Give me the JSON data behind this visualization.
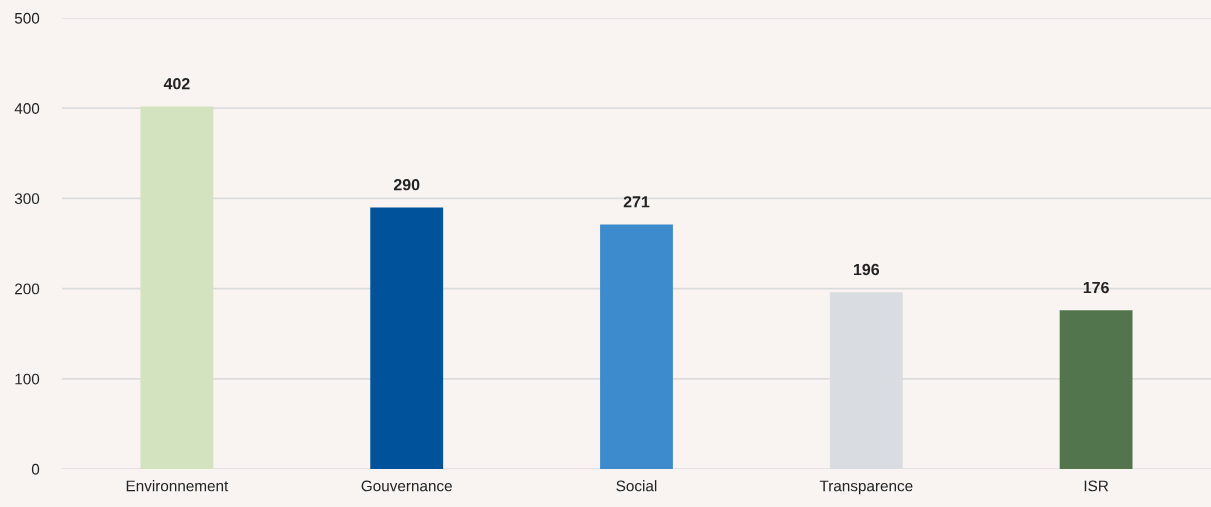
{
  "chart_data": {
    "type": "bar",
    "categories": [
      "Environnement",
      "Gouvernance",
      "Social",
      "Transparence",
      "ISR"
    ],
    "values": [
      402,
      290,
      271,
      196,
      176
    ],
    "colors": [
      "#d3e3c0",
      "#00529b",
      "#3d8acd",
      "#d9dce0",
      "#52754d"
    ],
    "ylim": [
      0,
      500
    ],
    "yticks": [
      0,
      100,
      200,
      300,
      400,
      500
    ],
    "grid": "y",
    "data_labels": true,
    "legend": false
  }
}
